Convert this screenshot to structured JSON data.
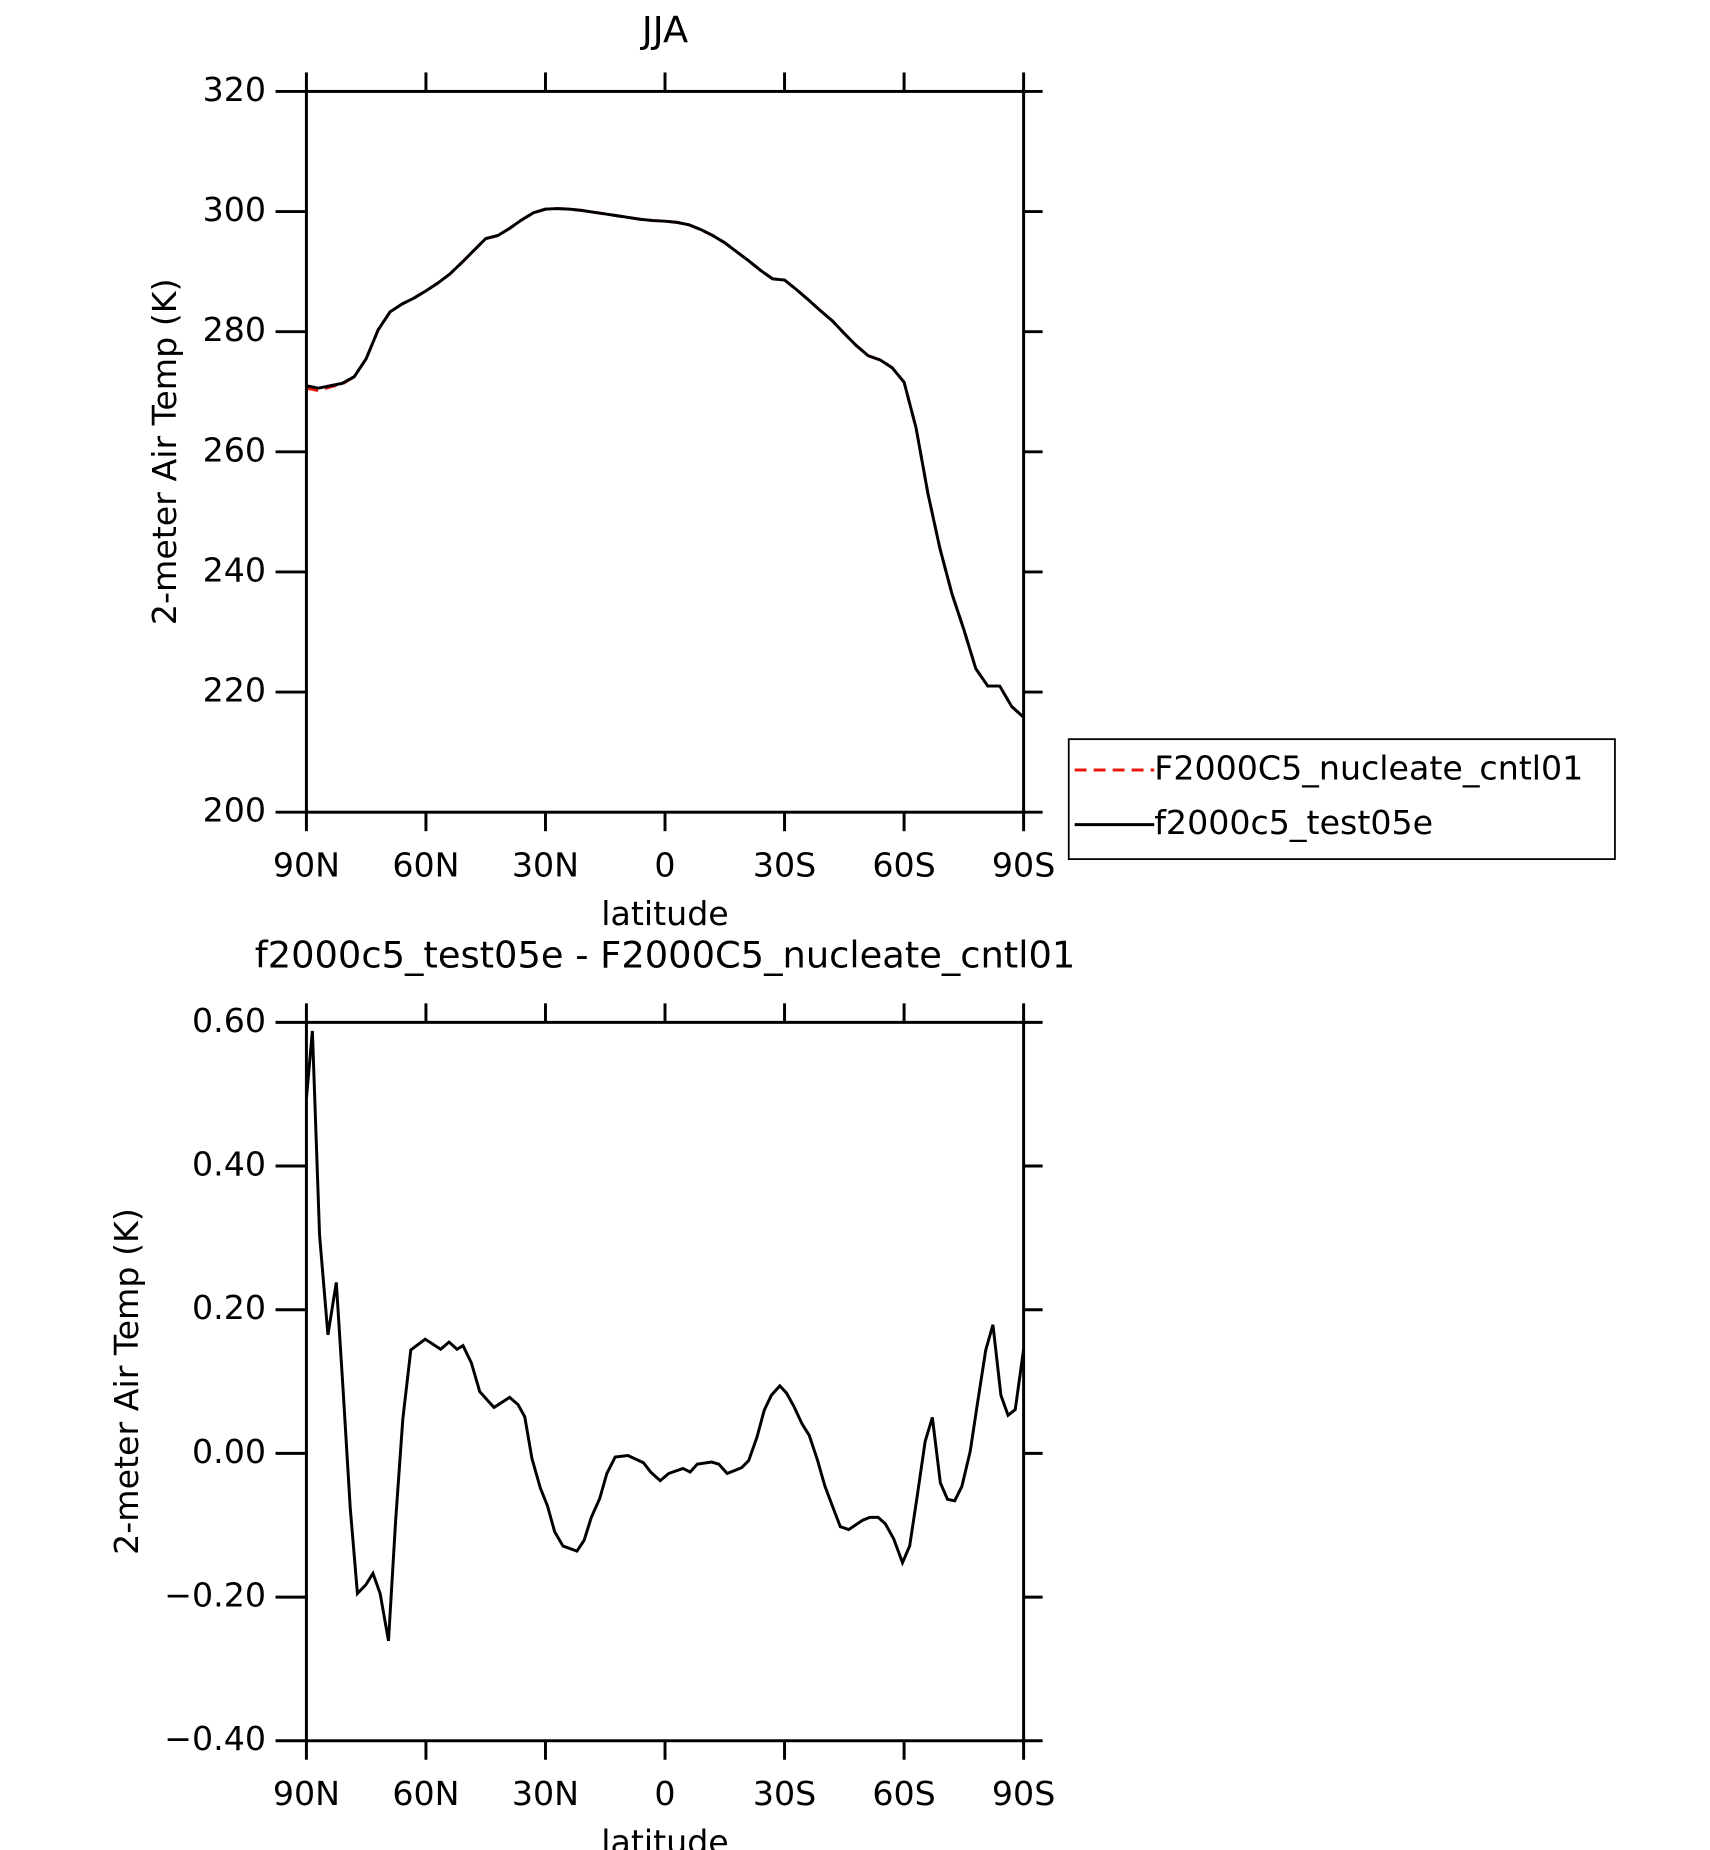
{
  "chart_data": [
    {
      "type": "line",
      "title": "JJA",
      "xlabel": "latitude",
      "ylabel": "2-meter Air Temp (K)",
      "x": [
        90,
        87,
        84,
        81,
        78,
        75,
        72,
        69,
        66,
        63,
        60,
        57,
        54,
        51,
        48,
        45,
        42,
        39,
        36,
        33,
        30,
        27,
        24,
        21,
        18,
        15,
        12,
        9,
        6,
        3,
        0,
        -3,
        -6,
        -9,
        -12,
        -15,
        -18,
        -21,
        -24,
        -27,
        -30,
        -33,
        -36,
        -39,
        -42,
        -45,
        -48,
        -51,
        -54,
        -57,
        -60,
        -63,
        -66,
        -69,
        -72,
        -75,
        -78,
        -81,
        -84,
        -87,
        -90
      ],
      "series": [
        {
          "name": "F2000C5_nucleate_cntl01",
          "color": "#e8180f",
          "linestyle": "dashed",
          "values": [
            270.6,
            270.2,
            270.8,
            271.3,
            272.5,
            275.5,
            280.3,
            283.3,
            284.6,
            285.6,
            286.8,
            288.1,
            289.6,
            291.5,
            293.5,
            295.5,
            296.0,
            297.2,
            298.6,
            299.8,
            300.4,
            300.5,
            300.4,
            300.2,
            299.9,
            299.6,
            299.3,
            299.0,
            298.7,
            298.5,
            298.4,
            298.2,
            297.8,
            297.0,
            296.0,
            294.8,
            293.3,
            291.8,
            290.2,
            288.8,
            288.6,
            287.0,
            285.3,
            283.5,
            281.8,
            279.7,
            277.7,
            276.0,
            275.3,
            274.0,
            271.6,
            264.0,
            253.0,
            243.9,
            236.4,
            230.4,
            223.9,
            221.0,
            221.0,
            217.6,
            215.8
          ]
        },
        {
          "name": "f2000c5_test05e",
          "color": "#000000",
          "linestyle": "solid",
          "values": [
            271.0,
            270.6,
            271.0,
            271.4,
            272.5,
            275.5,
            280.3,
            283.3,
            284.6,
            285.6,
            286.8,
            288.1,
            289.6,
            291.5,
            293.5,
            295.5,
            296.0,
            297.2,
            298.6,
            299.8,
            300.4,
            300.5,
            300.4,
            300.2,
            299.9,
            299.6,
            299.3,
            299.0,
            298.7,
            298.5,
            298.4,
            298.2,
            297.8,
            297.0,
            296.0,
            294.8,
            293.3,
            291.8,
            290.2,
            288.8,
            288.6,
            287.0,
            285.3,
            283.5,
            281.8,
            279.7,
            277.7,
            276.0,
            275.3,
            274.0,
            271.6,
            264.0,
            253.0,
            243.9,
            236.4,
            230.4,
            223.9,
            221.0,
            221.0,
            217.6,
            215.8
          ]
        }
      ],
      "xlim": [
        90,
        -90
      ],
      "ylim": [
        200,
        320
      ],
      "xticks": [
        {
          "value": 90,
          "label": "90N"
        },
        {
          "value": 60,
          "label": "60N"
        },
        {
          "value": 30,
          "label": "30N"
        },
        0,
        {
          "value": -30,
          "label": "30S"
        },
        {
          "value": -60,
          "label": "60S"
        },
        {
          "value": -90,
          "label": "90S"
        }
      ],
      "yticks": [
        200,
        220,
        240,
        260,
        280,
        300,
        320
      ],
      "legend": "right"
    },
    {
      "type": "line",
      "title": "f2000c5_test05e - F2000C5_nucleate_cntl01",
      "xlabel": "latitude",
      "ylabel": "2-meter Air Temp (K)",
      "x": [
        90,
        88.5,
        86.7,
        84.6,
        82.5,
        80.8,
        79,
        77.2,
        75.1,
        73.3,
        71.5,
        69.4,
        67.6,
        65.8,
        63.8,
        60.2,
        56.3,
        54.2,
        52.2,
        50.7,
        48.6,
        46.5,
        44.4,
        42.9,
        39.0,
        36.9,
        35.2,
        33.4,
        31.3,
        29.5,
        27.7,
        25.6,
        22.1,
        20.3,
        18.5,
        16.4,
        14.6,
        12.5,
        9.3,
        5.4,
        3.6,
        1.2,
        -0.9,
        -4.5,
        -6.3,
        -8.1,
        -11.7,
        -13.5,
        -15.6,
        -19.2,
        -21.0,
        -23.1,
        -24.9,
        -26.7,
        -28.8,
        -30.5,
        -32.3,
        -34.4,
        -36.2,
        -38.3,
        -40.1,
        -42.2,
        -44.0,
        -46.1,
        -49.6,
        -51.4,
        -53.5,
        -55.3,
        -57.4,
        -59.6,
        -61.4,
        -63.2,
        -65.3,
        -67.1,
        -69.1,
        -70.9,
        -72.7,
        -74.5,
        -76.6,
        -78.4,
        -80.5,
        -82.3,
        -84.3,
        -86.1,
        -87.9,
        -90
      ],
      "series": [
        {
          "color": "#000000",
          "linestyle": "solid",
          "values": [
            0.494,
            0.588,
            0.304,
            0.165,
            0.238,
            0.089,
            -0.076,
            -0.195,
            -0.183,
            -0.167,
            -0.195,
            -0.261,
            -0.093,
            0.048,
            0.144,
            0.159,
            0.145,
            0.155,
            0.145,
            0.15,
            0.126,
            0.086,
            0.073,
            0.064,
            0.078,
            0.068,
            0.051,
            -0.007,
            -0.048,
            -0.073,
            -0.109,
            -0.129,
            -0.136,
            -0.121,
            -0.089,
            -0.063,
            -0.028,
            -0.005,
            -0.003,
            -0.013,
            -0.026,
            -0.038,
            -0.028,
            -0.021,
            -0.026,
            -0.015,
            -0.012,
            -0.015,
            -0.028,
            -0.02,
            -0.01,
            0.023,
            0.06,
            0.081,
            0.094,
            0.084,
            0.066,
            0.041,
            0.025,
            -0.01,
            -0.045,
            -0.076,
            -0.102,
            -0.106,
            -0.093,
            -0.089,
            -0.089,
            -0.098,
            -0.119,
            -0.152,
            -0.129,
            -0.063,
            0.017,
            0.05,
            -0.041,
            -0.064,
            -0.066,
            -0.046,
            0.003,
            0.069,
            0.144,
            0.179,
            0.081,
            0.053,
            0.061,
            0.145
          ]
        }
      ],
      "xlim": [
        90,
        -90
      ],
      "ylim": [
        -0.4,
        0.6
      ],
      "xticks": [
        {
          "value": 90,
          "label": "90N"
        },
        {
          "value": 60,
          "label": "60N"
        },
        {
          "value": 30,
          "label": "30N"
        },
        0,
        {
          "value": -30,
          "label": "30S"
        },
        {
          "value": -60,
          "label": "60S"
        },
        {
          "value": -90,
          "label": "90S"
        }
      ],
      "yticks": [
        {
          "value": -0.4,
          "label": "−0.40"
        },
        {
          "value": -0.2,
          "label": "−0.20"
        },
        {
          "value": 0,
          "label": "0.00"
        },
        {
          "value": 0.2,
          "label": "0.20"
        },
        {
          "value": 0.4,
          "label": "0.40"
        },
        {
          "value": 0.6,
          "label": "0.60"
        }
      ]
    }
  ]
}
